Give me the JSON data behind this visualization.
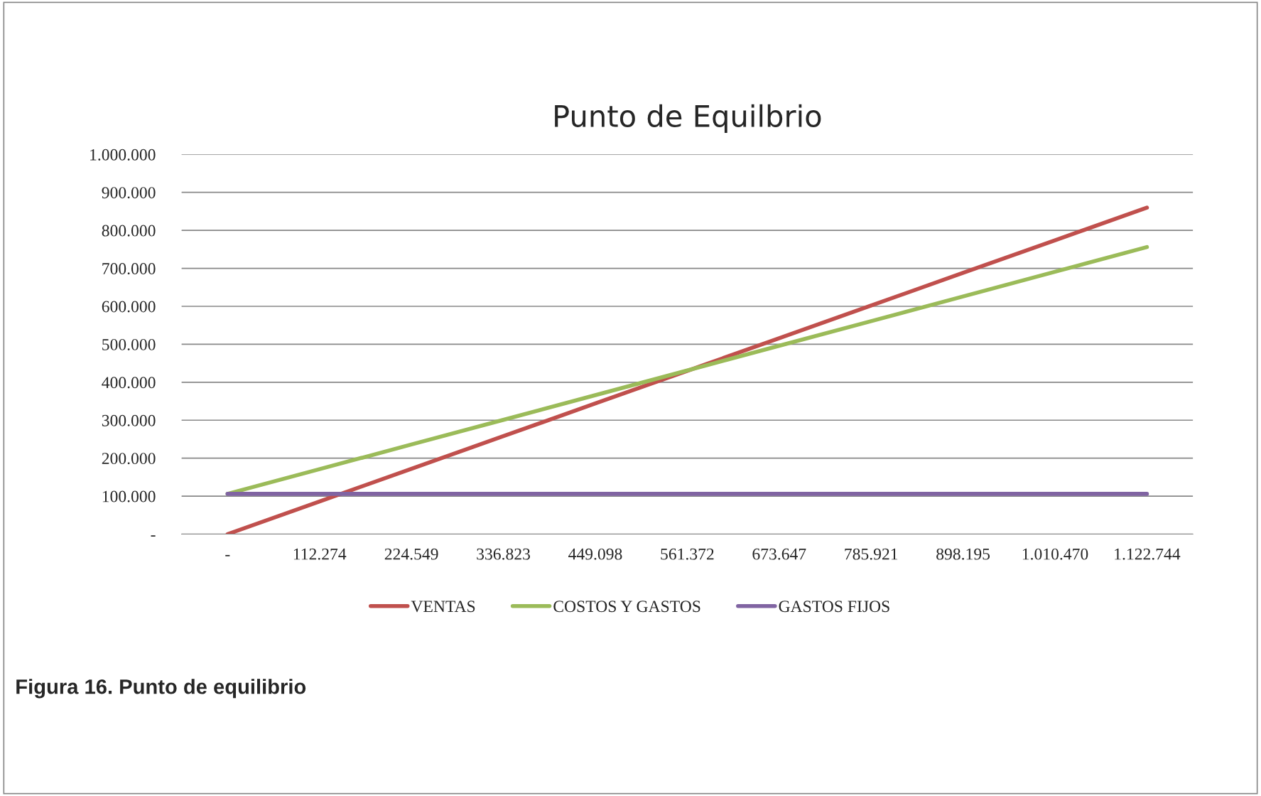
{
  "chart_data": {
    "type": "line",
    "title": "Punto de Equilbrio",
    "categories": [
      "-",
      "112.274",
      "224.549",
      "336.823",
      "449.098",
      "561.372",
      "673.647",
      "785.921",
      "898.195",
      "1.010.470",
      "1.122.744"
    ],
    "series": [
      {
        "name": "VENTAS",
        "color": "#c0504d",
        "values": [
          0,
          86000,
          172000,
          258000,
          344000,
          430000,
          516000,
          602000,
          688000,
          774000,
          860000
        ]
      },
      {
        "name": "COSTOS Y GASTOS",
        "color": "#9bbb59",
        "values": [
          106000,
          171000,
          236000,
          301000,
          366000,
          431000,
          496000,
          561000,
          626000,
          691000,
          756000
        ]
      },
      {
        "name": "GASTOS FIJOS",
        "color": "#8064a2",
        "values": [
          106000,
          106000,
          106000,
          106000,
          106000,
          106000,
          106000,
          106000,
          106000,
          106000,
          106000
        ]
      }
    ],
    "ylim": [
      0,
      1000000
    ],
    "yticks": [
      {
        "value": 0,
        "label": "-"
      },
      {
        "value": 100000,
        "label": "100.000"
      },
      {
        "value": 200000,
        "label": "200.000"
      },
      {
        "value": 300000,
        "label": "300.000"
      },
      {
        "value": 400000,
        "label": "400.000"
      },
      {
        "value": 500000,
        "label": "500.000"
      },
      {
        "value": 600000,
        "label": "600.000"
      },
      {
        "value": 700000,
        "label": "700.000"
      },
      {
        "value": 800000,
        "label": "800.000"
      },
      {
        "value": 900000,
        "label": "900.000"
      },
      {
        "value": 1000000,
        "label": "1.000.000"
      }
    ],
    "grid": "y",
    "legend": "bottom",
    "marker": "none",
    "line_style": "solid",
    "annotations": [
      "Figura 16. Punto de equilibrio"
    ]
  }
}
